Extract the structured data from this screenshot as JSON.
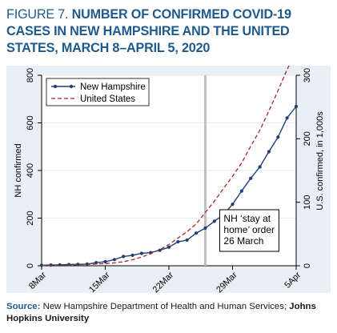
{
  "title": {
    "fig_label": "FIGURE 7.",
    "text": "NUMBER OF CONFIRMED COVID-19 CASES IN NEW HAMPSHIRE AND THE UNITED STATES, MARCH 8–APRIL 5, 2020"
  },
  "source": {
    "label": "Source:",
    "text": "New Hampshire Department of Health and Human Services;",
    "bold_text": "Johns Hopkins University"
  },
  "colors": {
    "nh_line": "#1f3e78",
    "us_line": "#a52a2a",
    "vline": "#c0c0c0",
    "panel_bg": "#e8eff6"
  },
  "chart_data": {
    "type": "line",
    "x_ticks": [
      "8Mar",
      "15Mar",
      "22Mar",
      "29Mar",
      "5Apr"
    ],
    "x_range": [
      "2020-03-08",
      "2020-04-05"
    ],
    "y_left": {
      "label": "NH confirmed",
      "ticks": [
        "0",
        "200",
        "400",
        "600",
        "800"
      ],
      "range": [
        0,
        800
      ]
    },
    "y_right": {
      "label": "U.S. confirmed, in 1,000s",
      "ticks": [
        "0",
        "100",
        "200",
        "300"
      ],
      "range": [
        0,
        300
      ]
    },
    "legend": {
      "placement": "top-left",
      "entries": [
        "New Hampshire",
        "United States"
      ]
    },
    "annotation": {
      "lines": [
        "NH ‘stay at",
        "home’ order",
        "26 March"
      ],
      "x": "2020-03-26"
    },
    "series": [
      {
        "name": "New Hampshire",
        "axis": "left",
        "style": "solid-markers",
        "x": [
          "2020-03-08",
          "2020-03-09",
          "2020-03-10",
          "2020-03-11",
          "2020-03-12",
          "2020-03-13",
          "2020-03-14",
          "2020-03-15",
          "2020-03-16",
          "2020-03-17",
          "2020-03-18",
          "2020-03-19",
          "2020-03-20",
          "2020-03-21",
          "2020-03-22",
          "2020-03-23",
          "2020-03-24",
          "2020-03-25",
          "2020-03-26",
          "2020-03-27",
          "2020-03-28",
          "2020-03-29",
          "2020-03-30",
          "2020-03-31",
          "2020-04-01",
          "2020-04-02",
          "2020-04-03",
          "2020-04-04",
          "2020-04-05"
        ],
        "values": [
          2,
          3,
          4,
          5,
          6,
          7,
          13,
          17,
          26,
          39,
          44,
          52,
          55,
          65,
          78,
          101,
          108,
          137,
          158,
          187,
          214,
          258,
          314,
          367,
          415,
          479,
          540,
          621,
          669
        ]
      },
      {
        "name": "United States",
        "axis": "right",
        "style": "dashed",
        "x": [
          "2020-03-08",
          "2020-03-09",
          "2020-03-10",
          "2020-03-11",
          "2020-03-12",
          "2020-03-13",
          "2020-03-14",
          "2020-03-15",
          "2020-03-16",
          "2020-03-17",
          "2020-03-18",
          "2020-03-19",
          "2020-03-20",
          "2020-03-21",
          "2020-03-22",
          "2020-03-23",
          "2020-03-24",
          "2020-03-25",
          "2020-03-26",
          "2020-03-27",
          "2020-03-28",
          "2020-03-29",
          "2020-03-30",
          "2020-03-31",
          "2020-04-01",
          "2020-04-02",
          "2020-04-03",
          "2020-04-04",
          "2020-04-05"
        ],
        "values": [
          0.5,
          0.6,
          0.9,
          1.3,
          1.7,
          2.2,
          2.7,
          3.5,
          4.6,
          6.4,
          9.4,
          13.7,
          19.1,
          25.5,
          33.3,
          43.8,
          53.7,
          65.8,
          83.8,
          101.7,
          121.5,
          140.9,
          161.8,
          188.2,
          213.4,
          243.8,
          275.6,
          308.9,
          337.0
        ]
      }
    ]
  }
}
